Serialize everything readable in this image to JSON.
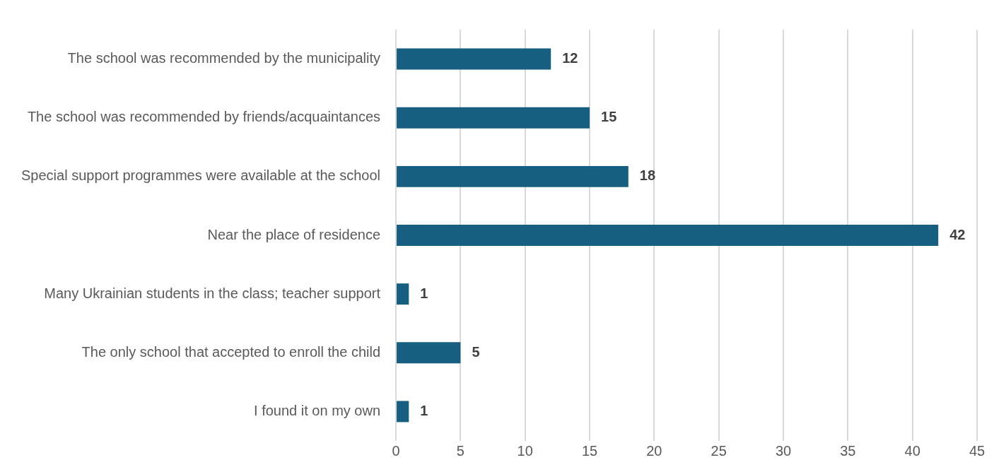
{
  "chart_data": {
    "type": "bar",
    "orientation": "horizontal",
    "categories": [
      "The school was recommended by the municipality",
      "The school was recommended by friends/acquaintances",
      "Special support programmes were available at the school",
      "Near the place of residence",
      "Many Ukrainian students in the class; teacher support",
      "The only school that accepted to enroll the child",
      "I found it on my own"
    ],
    "values": [
      12,
      15,
      18,
      42,
      1,
      5,
      1
    ],
    "color": "#175f80",
    "xlim": [
      0,
      45
    ],
    "xticks": [
      0,
      5,
      10,
      15,
      20,
      25,
      30,
      35,
      40,
      45
    ],
    "grid": "x",
    "data_labels": true,
    "legend": false
  }
}
